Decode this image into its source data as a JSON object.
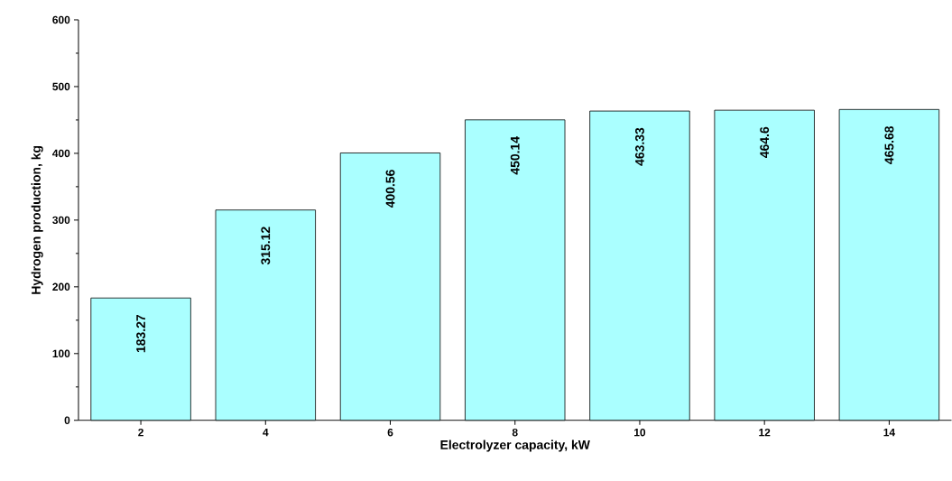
{
  "chart_data": {
    "type": "bar",
    "xlabel": "Electrolyzer capacity, kW",
    "ylabel": "Hydrogen production, kg",
    "categories": [
      "2",
      "4",
      "6",
      "8",
      "10",
      "12",
      "14"
    ],
    "values": [
      183.27,
      315.12,
      400.56,
      450.14,
      463.33,
      464.6,
      465.68
    ],
    "color": "#aaffff",
    "ylim": [
      0,
      600
    ],
    "yticks": [
      0,
      100,
      200,
      300,
      400,
      500,
      600
    ],
    "data_labels": true
  }
}
